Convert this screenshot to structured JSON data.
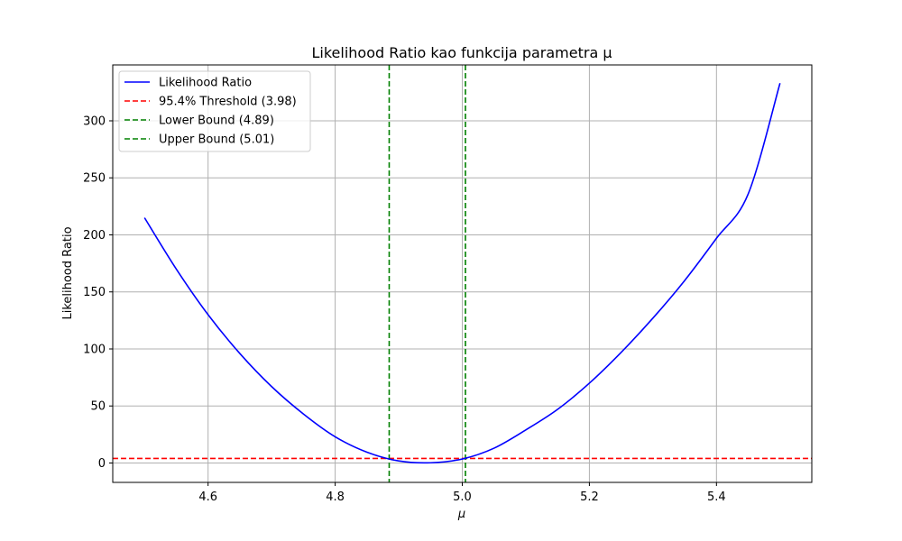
{
  "chart_data": {
    "type": "line",
    "title": "Likelihood Ratio kao funkcija parametra μ",
    "xlabel": "μ",
    "ylabel": "Likelihood Ratio",
    "xlim": [
      4.45,
      5.55
    ],
    "ylim": [
      -17,
      349
    ],
    "xticks": [
      4.6,
      4.8,
      5.0,
      5.2,
      5.4
    ],
    "xtick_labels": [
      "4.6",
      "4.8",
      "5.0",
      "5.2",
      "5.4"
    ],
    "yticks": [
      0,
      50,
      100,
      150,
      200,
      250,
      300
    ],
    "ytick_labels": [
      "0",
      "50",
      "100",
      "150",
      "200",
      "250",
      "300"
    ],
    "grid": true,
    "legend_position": "top-left",
    "series": [
      {
        "name": "Likelihood Ratio",
        "style": "solid",
        "color": "#0000ff",
        "x": [
          4.5,
          4.55,
          4.6,
          4.65,
          4.7,
          4.75,
          4.8,
          4.85,
          4.9,
          4.95,
          5.0,
          5.05,
          5.1,
          5.15,
          5.2,
          5.25,
          5.3,
          5.35,
          5.4,
          5.45,
          5.5
        ],
        "y": [
          215,
          170,
          130,
          96,
          67,
          43,
          23,
          9.5,
          1.8,
          0.2,
          3.5,
          13,
          29,
          47,
          70,
          97,
          127,
          160,
          197,
          236,
          333
        ]
      }
    ],
    "reference_lines": [
      {
        "name": "95.4% Threshold (3.98)",
        "orientation": "horizontal",
        "value": 3.98,
        "color": "#ff0000",
        "style": "dashed"
      },
      {
        "name": "Lower Bound (4.89)",
        "orientation": "vertical",
        "value": 4.885,
        "color": "#008000",
        "style": "dashed"
      },
      {
        "name": "Upper Bound (5.01)",
        "orientation": "vertical",
        "value": 5.005,
        "color": "#008000",
        "style": "dashed"
      }
    ]
  },
  "colors": {
    "grid": "#b0b0b0",
    "axes": "#000000",
    "legend_border": "#cccccc"
  }
}
